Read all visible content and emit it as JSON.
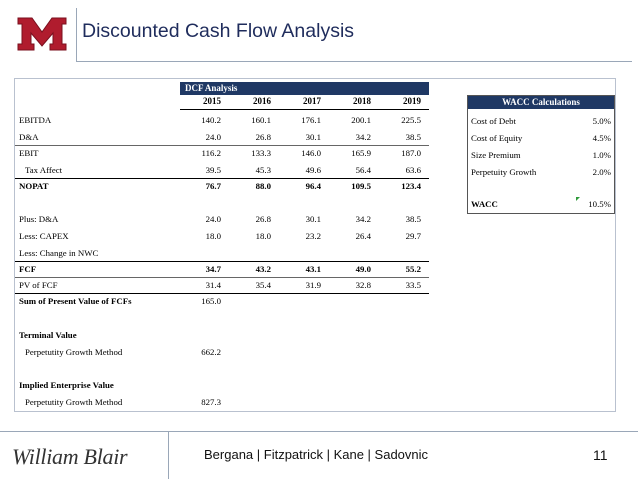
{
  "header": {
    "title": "Discounted Cash Flow Analysis"
  },
  "logo": {
    "letter": "M",
    "color": "#b01c2e"
  },
  "dcf": {
    "header": "DCF Analysis",
    "years": [
      "2015",
      "2016",
      "2017",
      "2018",
      "2019"
    ],
    "rows": [
      {
        "label": "EBITDA",
        "values": [
          "140.2",
          "160.1",
          "176.1",
          "200.1",
          "225.5"
        ]
      },
      {
        "label": "D&A",
        "values": [
          "24.0",
          "26.8",
          "30.1",
          "34.2",
          "38.5"
        ]
      },
      {
        "label": "EBIT",
        "values": [
          "116.2",
          "133.3",
          "146.0",
          "165.9",
          "187.0"
        ]
      },
      {
        "label": "Tax Affect",
        "values": [
          "39.5",
          "45.3",
          "49.6",
          "56.4",
          "63.6"
        ]
      },
      {
        "label": "NOPAT",
        "values": [
          "76.7",
          "88.0",
          "96.4",
          "109.5",
          "123.4"
        ]
      },
      {
        "label": "Plus: D&A",
        "values": [
          "24.0",
          "26.8",
          "30.1",
          "34.2",
          "38.5"
        ]
      },
      {
        "label": "Less: CAPEX",
        "values": [
          "18.0",
          "18.0",
          "23.2",
          "26.4",
          "29.7"
        ]
      },
      {
        "label": "Less: Change in NWC",
        "values": [
          "",
          "",
          "",
          "",
          ""
        ]
      },
      {
        "label": "FCF",
        "values": [
          "34.7",
          "43.2",
          "43.1",
          "49.0",
          "55.2"
        ]
      },
      {
        "label": "PV of FCF",
        "values": [
          "31.4",
          "35.4",
          "31.9",
          "32.8",
          "33.5"
        ]
      },
      {
        "label": "Sum of Present Value of FCFs",
        "values": [
          "165.0"
        ]
      },
      {
        "label": "Terminal Value",
        "values": []
      },
      {
        "label": "Perpetutity Growth Method",
        "values": [
          "662.2"
        ]
      },
      {
        "label": "Implied Enterprise Value",
        "values": []
      },
      {
        "label": "Perpetutity Growth Method",
        "values": [
          "827.3"
        ]
      }
    ]
  },
  "wacc": {
    "header": "WACC Calculations",
    "rows": [
      {
        "label": "Cost of Debt",
        "value": "5.0%"
      },
      {
        "label": "Cost of Equity",
        "value": "4.5%"
      },
      {
        "label": "Size Premium",
        "value": "1.0%"
      },
      {
        "label": "Perpetuity Growth",
        "value": "2.0%"
      }
    ],
    "result": {
      "label": "WACC",
      "value": "10.5%"
    }
  },
  "footer": {
    "brand": "William Blair",
    "authors": "Bergana | Fitzpatrick | Kane | Sadovnic",
    "page": "11"
  }
}
